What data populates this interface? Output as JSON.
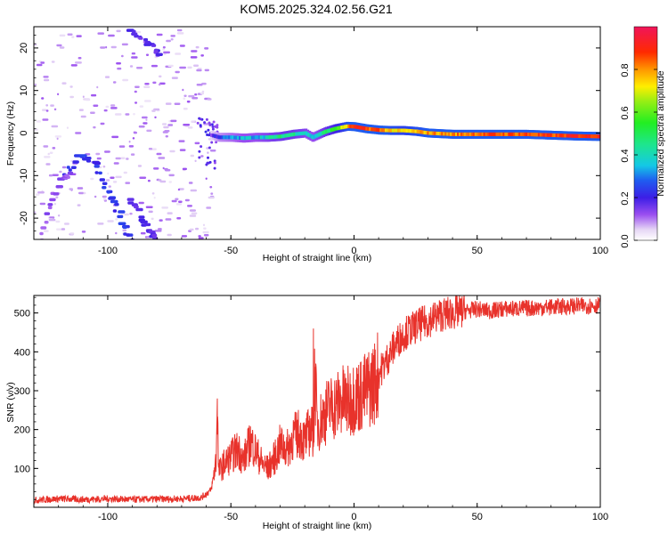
{
  "title": "KOM5.2025.324.02.56.G21",
  "chart_data": [
    {
      "type": "heatmap",
      "name": "spectrogram",
      "xlabel": "Height of straight line (km)",
      "ylabel": "Frequency (Hz)",
      "xlim": [
        -130,
        100
      ],
      "ylim": [
        -25,
        25
      ],
      "xticks": [
        -100,
        -50,
        0,
        50,
        100
      ],
      "yticks": [
        -20,
        -10,
        0,
        10,
        20
      ],
      "ridge": [
        {
          "x": -58,
          "y": -0.5,
          "amp": 0.15
        },
        {
          "x": -55,
          "y": -1.0,
          "amp": 0.25
        },
        {
          "x": -50,
          "y": -1.0,
          "amp": 0.3
        },
        {
          "x": -45,
          "y": -1.2,
          "amp": 0.35
        },
        {
          "x": -40,
          "y": -1.0,
          "amp": 0.35
        },
        {
          "x": -35,
          "y": -1.0,
          "amp": 0.4
        },
        {
          "x": -30,
          "y": -0.8,
          "amp": 0.45
        },
        {
          "x": -25,
          "y": -0.3,
          "amp": 0.45
        },
        {
          "x": -20,
          "y": 0.0,
          "amp": 0.4
        },
        {
          "x": -17,
          "y": -1.0,
          "amp": 0.35
        },
        {
          "x": -12,
          "y": 0.3,
          "amp": 0.45
        },
        {
          "x": -8,
          "y": 1.0,
          "amp": 0.55
        },
        {
          "x": -3,
          "y": 1.6,
          "amp": 0.75
        },
        {
          "x": 0,
          "y": 1.5,
          "amp": 0.9
        },
        {
          "x": 5,
          "y": 1.0,
          "amp": 0.85
        },
        {
          "x": 10,
          "y": 0.7,
          "amp": 0.85
        },
        {
          "x": 15,
          "y": 0.6,
          "amp": 0.75
        },
        {
          "x": 20,
          "y": 0.6,
          "amp": 0.7
        },
        {
          "x": 25,
          "y": 0.4,
          "amp": 0.75
        },
        {
          "x": 30,
          "y": 0.0,
          "amp": 0.8
        },
        {
          "x": 40,
          "y": -0.3,
          "amp": 0.8
        },
        {
          "x": 50,
          "y": -0.3,
          "amp": 0.85
        },
        {
          "x": 60,
          "y": -0.3,
          "amp": 0.85
        },
        {
          "x": 70,
          "y": -0.3,
          "amp": 0.85
        },
        {
          "x": 80,
          "y": -0.5,
          "amp": 0.85
        },
        {
          "x": 90,
          "y": -0.7,
          "amp": 0.9
        },
        {
          "x": 100,
          "y": -0.8,
          "amp": 0.9
        }
      ],
      "colorbar": {
        "label": "Normalized spectral amplitude",
        "range": [
          0,
          1
        ],
        "ticks": [
          0.0,
          0.2,
          0.4,
          0.6,
          0.8
        ]
      }
    },
    {
      "type": "line",
      "name": "snr",
      "xlabel": "Height of straight line (km)",
      "ylabel": "SNR (v/v)",
      "xlim": [
        -130,
        100
      ],
      "ylim": [
        0,
        545
      ],
      "xticks": [
        -100,
        -50,
        0,
        50,
        100
      ],
      "yticks": [
        100,
        200,
        300,
        400,
        500
      ],
      "color": "#e8322b",
      "series": [
        {
          "name": "SNR",
          "x": [
            -130,
            -120,
            -110,
            -100,
            -90,
            -80,
            -70,
            -62,
            -58,
            -56,
            -55.5,
            -55,
            -53,
            -50,
            -47,
            -45,
            -42,
            -40,
            -37,
            -35,
            -32,
            -30,
            -27,
            -25,
            -22,
            -20,
            -18,
            -16,
            -16.5,
            -15,
            -12,
            -10,
            -7,
            -5,
            -2,
            0,
            3,
            5,
            8,
            10,
            13,
            15,
            18,
            20,
            25,
            30,
            35,
            40,
            45,
            50,
            55,
            60,
            70,
            80,
            90,
            100
          ],
          "y": [
            18,
            22,
            20,
            22,
            20,
            21,
            22,
            25,
            45,
            120,
            280,
            90,
            110,
            130,
            150,
            120,
            170,
            145,
            110,
            100,
            130,
            160,
            150,
            180,
            190,
            170,
            200,
            190,
            460,
            210,
            240,
            255,
            265,
            275,
            270,
            285,
            290,
            300,
            320,
            345,
            375,
            400,
            430,
            445,
            465,
            480,
            495,
            500,
            505,
            510,
            505,
            510,
            512,
            515,
            518,
            520
          ]
        }
      ]
    }
  ]
}
